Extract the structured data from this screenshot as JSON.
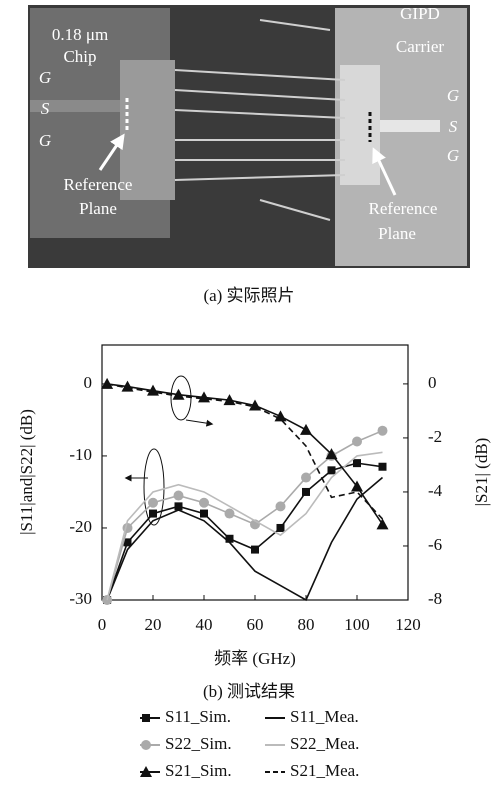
{
  "photo": {
    "labels": [
      "0.18 μm",
      "Chip",
      "G",
      "S",
      "G",
      "Reference",
      "Plane",
      "GIPD",
      "Carrier",
      "G",
      "S",
      "G",
      "Reference",
      "Plane"
    ]
  },
  "captions": [
    "(a) 实际照片",
    "(b) 测试结果"
  ],
  "chart_data": {
    "type": "line",
    "x_label": "频率 (GHz)",
    "y_label": "|S11|and|S22| (dB)",
    "y2_label": "|S21| (dB)",
    "x": [
      2,
      10,
      20,
      30,
      40,
      50,
      60,
      70,
      80,
      90,
      100,
      110
    ],
    "xlim": [
      0,
      120
    ],
    "xticks": [
      0,
      20,
      40,
      60,
      80,
      100,
      120
    ],
    "ylim": [
      -30,
      5.4
    ],
    "yticks": [
      -30,
      -20,
      -10,
      0
    ],
    "y2lim": [
      -8,
      1.44
    ],
    "y2ticks": [
      -8,
      -6,
      -4,
      -2,
      0
    ],
    "grid": false,
    "series": [
      {
        "name": "S11_Sim.",
        "color": "#111111",
        "marker": "square",
        "dashed": false,
        "values": [
          -30,
          -22,
          -18,
          -17,
          -18,
          -21.5,
          -23,
          -20,
          -15,
          -12,
          -11,
          -11.5
        ]
      },
      {
        "name": "S11_Mea.",
        "color": "#111111",
        "marker": "none",
        "dashed": false,
        "values": [
          -30,
          -23,
          -19,
          -17.5,
          -19,
          -22,
          -26,
          -28,
          -30,
          -22,
          -16,
          -13
        ]
      },
      {
        "name": "S22_Sim.",
        "color": "#aaaaaa",
        "marker": "circle",
        "dashed": false,
        "values": [
          -30,
          -20,
          -16.5,
          -15.5,
          -16.5,
          -18,
          -19.5,
          -17,
          -13,
          -10,
          -8,
          -6.5
        ]
      },
      {
        "name": "S22_Mea.",
        "color": "#bbbbbb",
        "marker": "none",
        "dashed": false,
        "values": [
          -30,
          -19,
          -15,
          -14,
          -15,
          -17,
          -19,
          -21,
          -18,
          -13,
          -10,
          -9.5
        ]
      },
      {
        "name": "S21_Sim.",
        "color": "#111111",
        "marker": "triangle",
        "dashed": false,
        "axis": "y2",
        "values": [
          0,
          -0.1,
          -0.25,
          -0.4,
          -0.5,
          -0.6,
          -0.8,
          -1.2,
          -1.7,
          -2.6,
          -3.8,
          -5.2
        ]
      },
      {
        "name": "S21_Mea.",
        "color": "#111111",
        "marker": "none",
        "dashed": true,
        "axis": "y2",
        "values": [
          0,
          -0.15,
          -0.3,
          -0.45,
          -0.55,
          -0.65,
          -0.85,
          -1.3,
          -2.3,
          -4.2,
          -4,
          -5
        ]
      }
    ]
  }
}
